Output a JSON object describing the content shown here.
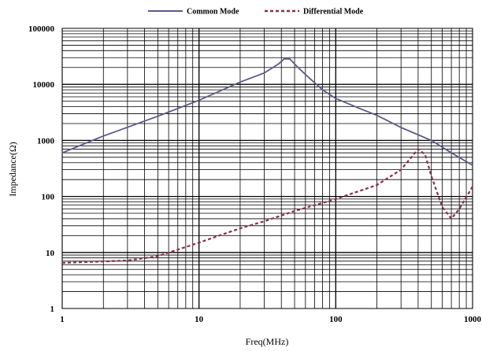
{
  "chart_data": {
    "type": "line",
    "xlabel": "Freq(MHz)",
    "ylabel": "Impedance(Ω)",
    "x_scale": "log",
    "y_scale": "log",
    "xlim": [
      1,
      1000
    ],
    "ylim": [
      1,
      100000
    ],
    "grid": true,
    "legend_position": "top-center",
    "x_ticks": [
      "1",
      "10",
      "100",
      "1000"
    ],
    "y_ticks": [
      "1",
      "10",
      "100",
      "1000",
      "10000",
      "100000"
    ],
    "series": [
      {
        "name": "Common Mode",
        "color": "#5a5a8c",
        "style": "solid",
        "points": [
          [
            1,
            600
          ],
          [
            2,
            1200
          ],
          [
            5,
            2700
          ],
          [
            10,
            5200
          ],
          [
            20,
            11000
          ],
          [
            30,
            16000
          ],
          [
            38,
            23000
          ],
          [
            42,
            28500
          ],
          [
            46,
            28500
          ],
          [
            50,
            23000
          ],
          [
            60,
            15000
          ],
          [
            80,
            8000
          ],
          [
            100,
            5600
          ],
          [
            150,
            3700
          ],
          [
            200,
            2800
          ],
          [
            300,
            1700
          ],
          [
            500,
            1000
          ],
          [
            700,
            600
          ],
          [
            1000,
            360
          ]
        ]
      },
      {
        "name": "Differential Mode",
        "color": "#8c2f4a",
        "style": "dashed",
        "points": [
          [
            1,
            6.5
          ],
          [
            3,
            7.2
          ],
          [
            5,
            8.6
          ],
          [
            10,
            15
          ],
          [
            20,
            27
          ],
          [
            30,
            36
          ],
          [
            50,
            55
          ],
          [
            100,
            90
          ],
          [
            200,
            160
          ],
          [
            300,
            300
          ],
          [
            400,
            700
          ],
          [
            450,
            560
          ],
          [
            500,
            230
          ],
          [
            600,
            65
          ],
          [
            700,
            40
          ],
          [
            800,
            60
          ],
          [
            1000,
            150
          ]
        ]
      }
    ]
  }
}
